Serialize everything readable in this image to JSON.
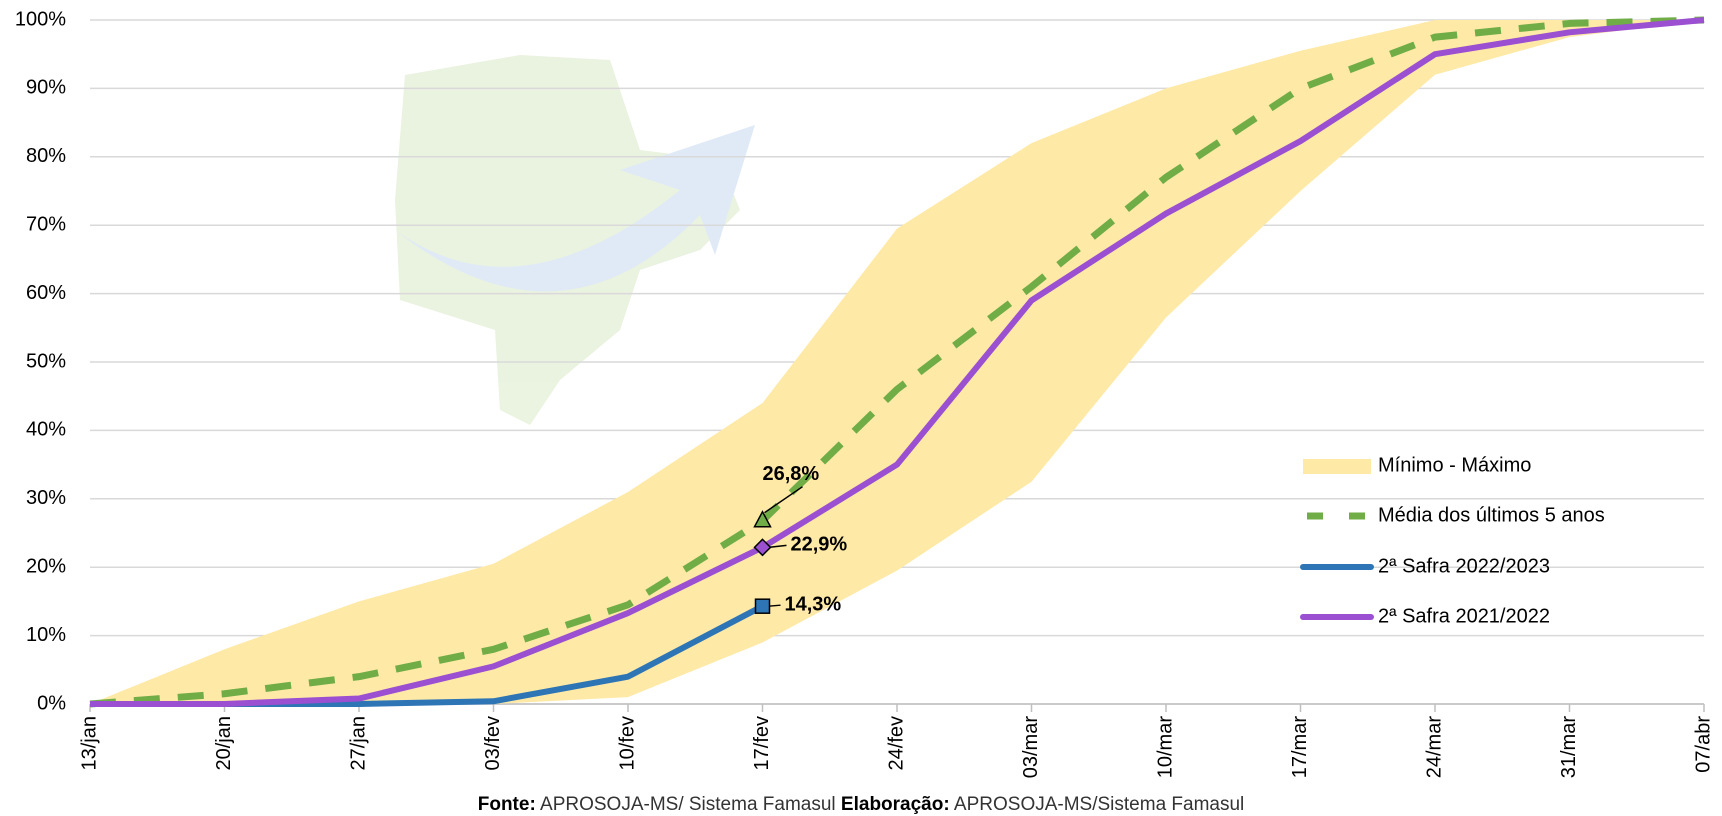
{
  "chart_data": {
    "type": "line",
    "categories": [
      "13/jan",
      "20/jan",
      "27/jan",
      "03/fev",
      "10/fev",
      "17/fev",
      "24/fev",
      "03/mar",
      "10/mar",
      "17/mar",
      "24/mar",
      "31/mar",
      "07/abr"
    ],
    "ylim": [
      0,
      100
    ],
    "yticks": [
      {
        "value": 0,
        "label": "0%"
      },
      {
        "value": 10,
        "label": "10%"
      },
      {
        "value": 20,
        "label": "20%"
      },
      {
        "value": 30,
        "label": "30%"
      },
      {
        "value": 40,
        "label": "40%"
      },
      {
        "value": 50,
        "label": "50%"
      },
      {
        "value": 60,
        "label": "60%"
      },
      {
        "value": 70,
        "label": "70%"
      },
      {
        "value": 80,
        "label": "80%"
      },
      {
        "value": 90,
        "label": "90%"
      },
      {
        "value": 100,
        "label": "100%"
      }
    ],
    "grid": true,
    "legend": "right",
    "band": {
      "name": "Mínimo - Máximo",
      "color": "#ffe9a6",
      "min": [
        0,
        0,
        0,
        0,
        1,
        9,
        19.5,
        32.5,
        56.5,
        75,
        92,
        97.5,
        100
      ],
      "max": [
        0,
        8,
        15,
        20.5,
        31,
        44,
        69.5,
        82,
        90,
        95.5,
        100,
        100,
        100
      ]
    },
    "series": [
      {
        "name": "Média dos últimos 5 anos",
        "color": "#70ad47",
        "dash": true,
        "marker": "triangle",
        "values": [
          0,
          1.5,
          4,
          8,
          14.5,
          26.8,
          46,
          61,
          77,
          90,
          97.5,
          99.5,
          100
        ],
        "value_labels": [
          null,
          null,
          null,
          null,
          null,
          "26,8%",
          null,
          null,
          null,
          null,
          null,
          null,
          null
        ]
      },
      {
        "name": "2ª Safra 2022/2023",
        "color": "#2e75b6",
        "marker": "square",
        "label_color": "#0070c0",
        "values": [
          0,
          0,
          0,
          0.4,
          4,
          14.3,
          null,
          null,
          null,
          null,
          null,
          null,
          null
        ],
        "value_labels": [
          null,
          null,
          null,
          null,
          null,
          "14,3%",
          null,
          null,
          null,
          null,
          null,
          null,
          null
        ]
      },
      {
        "name": "2ª Safra 2021/2022",
        "color": "#9b4fd1",
        "marker": "diamond",
        "label_color": "#7030a0",
        "values": [
          0,
          0,
          0.8,
          5.5,
          13.3,
          22.9,
          35,
          59,
          71.7,
          82.3,
          95,
          98.2,
          100
        ],
        "value_labels": [
          null,
          null,
          null,
          null,
          null,
          "22,9%",
          null,
          null,
          null,
          null,
          null,
          null,
          null
        ]
      }
    ],
    "source": [
      {
        "label": "Fonte:",
        "text": "APROSOJA-MS/ Sistema Famasul"
      },
      {
        "label": "Elaboração:",
        "text": "APROSOJA-MS/Sistema Famasul"
      }
    ]
  }
}
